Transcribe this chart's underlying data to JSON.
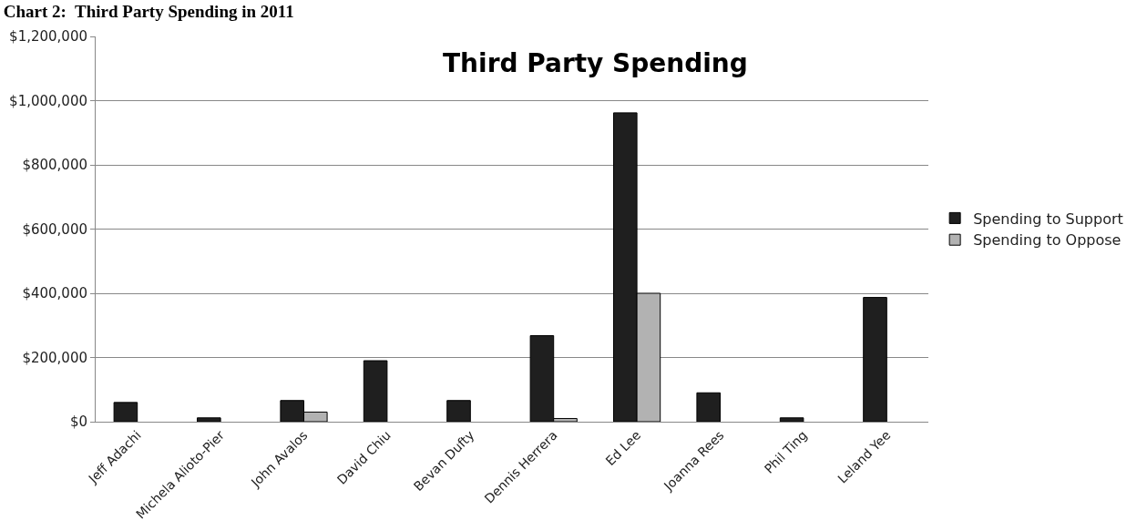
{
  "chart_data": {
    "type": "bar",
    "title": "Chart 2:  Third Party Spending in 2011",
    "subtitle": "Third Party Spending",
    "categories": [
      "Jeff Adachi",
      "Michela Alioto-Pier",
      "John Avalos",
      "David Chiu",
      "Bevan Dufty",
      "Dennis Herrera",
      "Ed Lee",
      "Joanna Rees",
      "Phil Ting",
      "Leland Yee"
    ],
    "series": [
      {
        "name": "Spending to Support",
        "color": "#1f1f1f",
        "values": [
          60000,
          12000,
          66000,
          190000,
          66000,
          268000,
          962000,
          90000,
          12000,
          387000
        ]
      },
      {
        "name": "Spending to Oppose",
        "color": "#b2b2b2",
        "values": [
          null,
          null,
          30000,
          null,
          null,
          10000,
          400000,
          null,
          null,
          null
        ]
      }
    ],
    "ylim": [
      0,
      1200000
    ],
    "yticks": [
      {
        "value": 0,
        "label": "$0"
      },
      {
        "value": 200000,
        "label": "$200,000"
      },
      {
        "value": 400000,
        "label": "$400,000"
      },
      {
        "value": 600000,
        "label": "$600,000"
      },
      {
        "value": 800000,
        "label": "$800,000"
      },
      {
        "value": 1000000,
        "label": "$1,000,000"
      },
      {
        "value": 1200000,
        "label": "$1,200,000"
      }
    ],
    "grid": "y",
    "legend": "right"
  }
}
